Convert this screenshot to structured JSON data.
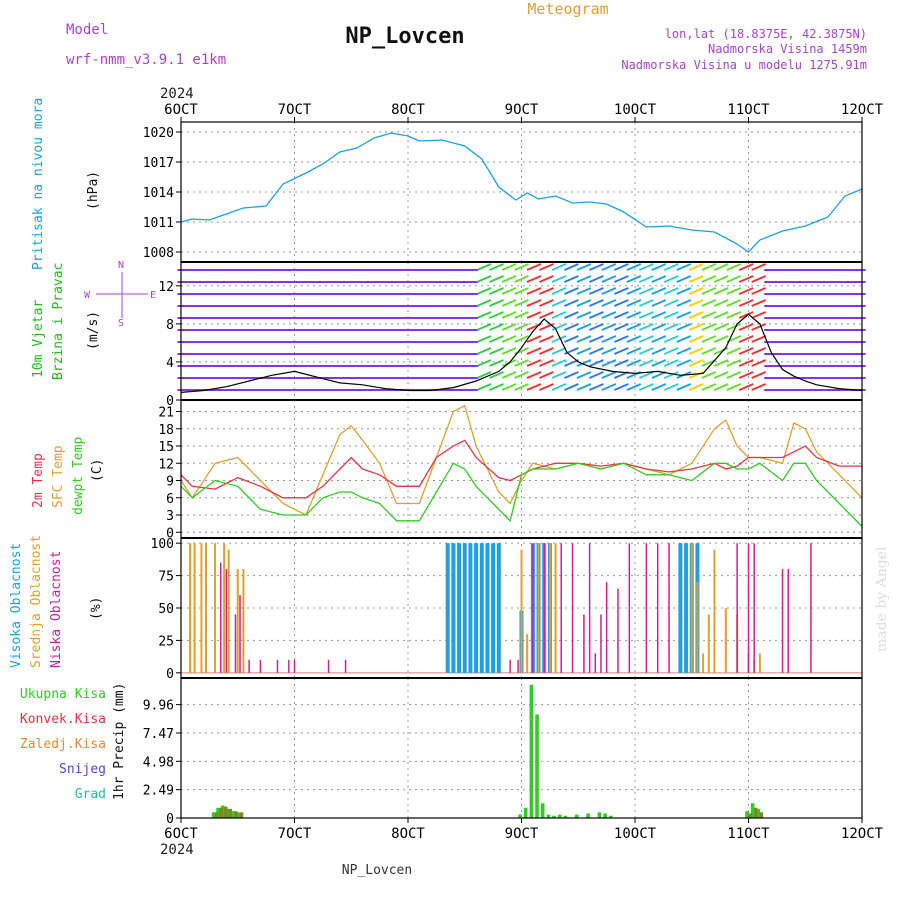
{
  "header": {
    "model_label": "Model",
    "model_name": "wrf-nmm_v3.9.1 e1km",
    "station": "NP_Lovcen",
    "product": "Meteogram",
    "lonlat": "lon,lat (18.8375E, 42.3875N)",
    "elevation": "Nadmorska Visina 1459m",
    "model_elevation": "Nadmorska Visina u modelu 1275.91m",
    "footer_station": "NP_Lovcen",
    "credit": "made by Angel"
  },
  "time_axis": {
    "year": "2024",
    "ticks": [
      "6OCT",
      "7OCT",
      "8OCT",
      "9OCT",
      "10OCT",
      "11OCT",
      "12OCT"
    ]
  },
  "colors": {
    "pressure": "#1ea0e6",
    "wind_title": "#22bb22",
    "speed_title": "#22bb22",
    "wind_legend": "#aa44cc",
    "t2m": "#ee3344",
    "tsfc": "#e0a030",
    "dewpt": "#33cc22",
    "high_cloud": "#1ea0e6",
    "mid_cloud": "#e0a030",
    "low_cloud": "#cc2299",
    "total_precip": "#33cc22",
    "conv_precip": "#ee3344",
    "frz_precip": "#ee8833",
    "snow": "#5544dd",
    "grad": "#22bbaa",
    "model": "#aa44cc",
    "meteogram": "#e0a030",
    "location": "#aa44cc"
  },
  "chart_data": [
    {
      "type": "line",
      "panel": "pressure",
      "ylabel_title": "Pritisak na nivou mora",
      "ylabel_unit": "(hPa)",
      "yticks": [
        1008,
        1011,
        1014,
        1017,
        1020
      ],
      "ylim": [
        1007,
        1021
      ],
      "x": [
        0,
        0.1,
        0.25,
        0.4,
        0.55,
        0.75,
        0.9,
        1.1,
        1.25,
        1.4,
        1.55,
        1.7,
        1.85,
        2.0,
        2.1,
        2.3,
        2.5,
        2.65,
        2.8,
        2.95,
        3.05,
        3.15,
        3.3,
        3.45,
        3.6,
        3.75,
        3.9,
        4.1,
        4.3,
        4.5,
        4.7,
        4.9,
        5.0,
        5.1,
        5.3,
        5.5,
        5.7,
        5.85,
        6.0
      ],
      "series": [
        {
          "name": "",
          "values": [
            1011,
            1011.3,
            1011.2,
            1011.8,
            1012.4,
            1012.6,
            1014.8,
            1015.9,
            1016.8,
            1018.0,
            1018.4,
            1019.4,
            1019.9,
            1019.6,
            1019.1,
            1019.2,
            1018.6,
            1017.3,
            1014.5,
            1013.2,
            1013.9,
            1013.3,
            1013.6,
            1012.9,
            1013.0,
            1012.8,
            1012.0,
            1010.5,
            1010.6,
            1010.2,
            1010.0,
            1008.8,
            1008.0,
            1009.2,
            1010.1,
            1010.6,
            1011.5,
            1013.6,
            1014.3
          ]
        }
      ]
    },
    {
      "type": "line",
      "panel": "wind",
      "ylabel_title_line1": "10m Vjetar",
      "ylabel_title_line2": "Brzina i Pravac",
      "ylabel_unit": "(m/s)",
      "direction_legend": [
        "N",
        "W",
        "E",
        "S"
      ],
      "yticks": [
        0,
        4,
        8,
        12
      ],
      "ylim": [
        0,
        14.5
      ],
      "x": [
        0,
        0.2,
        0.4,
        0.6,
        0.8,
        1.0,
        1.2,
        1.4,
        1.6,
        1.8,
        2.0,
        2.2,
        2.4,
        2.6,
        2.8,
        2.9,
        3.0,
        3.1,
        3.2,
        3.3,
        3.4,
        3.5,
        3.6,
        3.8,
        4.0,
        4.2,
        4.4,
        4.6,
        4.8,
        4.9,
        5.0,
        5.1,
        5.2,
        5.3,
        5.4,
        5.5,
        5.6,
        5.8,
        6.0
      ],
      "series": [
        {
          "name": "",
          "values": [
            0.8,
            1.0,
            1.4,
            2.0,
            2.6,
            3.0,
            2.4,
            1.8,
            1.6,
            1.2,
            1.0,
            1.0,
            1.3,
            2.0,
            3.0,
            4.0,
            5.5,
            7.2,
            8.5,
            7.5,
            5.0,
            4.0,
            3.5,
            3.0,
            2.8,
            3.0,
            2.6,
            2.8,
            5.5,
            8.0,
            9.0,
            8.0,
            5.0,
            3.2,
            2.5,
            2.0,
            1.6,
            1.2,
            1.0
          ]
        }
      ]
    },
    {
      "type": "line",
      "panel": "temperature",
      "ylabel_t2m": "2m Temp",
      "ylabel_tsfc": "SFC Temp",
      "ylabel_dewpt": "dewpt Temp",
      "ylabel_unit": "(C)",
      "yticks": [
        0,
        3,
        6,
        9,
        12,
        15,
        18,
        21
      ],
      "ylim": [
        -1,
        23
      ],
      "x": [
        0,
        0.1,
        0.3,
        0.5,
        0.7,
        0.9,
        1.1,
        1.25,
        1.4,
        1.5,
        1.6,
        1.75,
        1.9,
        2.1,
        2.25,
        2.4,
        2.5,
        2.6,
        2.8,
        2.9,
        3.0,
        3.1,
        3.3,
        3.5,
        3.7,
        3.9,
        4.1,
        4.3,
        4.5,
        4.7,
        4.8,
        4.9,
        5.0,
        5.1,
        5.3,
        5.4,
        5.5,
        5.6,
        5.8,
        6.0
      ],
      "series": [
        {
          "name": "2m Temp",
          "values": [
            10,
            8,
            7.5,
            9.5,
            8,
            6,
            6,
            8,
            11,
            13,
            11,
            10,
            8,
            8,
            13,
            15,
            16,
            13,
            9.5,
            9,
            10,
            11,
            12,
            12,
            11.5,
            12,
            11,
            10.5,
            11,
            12,
            11,
            11.5,
            13,
            13,
            13,
            14,
            15,
            13,
            11.5,
            11.5
          ]
        },
        {
          "name": "SFC Temp",
          "values": [
            9,
            6,
            12,
            13,
            9,
            5,
            3,
            10,
            17,
            18.5,
            16,
            12,
            5,
            5,
            13,
            21,
            22,
            15,
            7,
            5,
            9,
            12,
            11,
            12,
            11,
            12,
            11,
            10,
            12,
            18,
            19.5,
            15,
            13,
            13,
            12,
            19,
            18,
            14,
            10,
            6
          ]
        },
        {
          "name": "dewpt Temp",
          "values": [
            8,
            6,
            9,
            8,
            4,
            3,
            3,
            6,
            7,
            7,
            6,
            5,
            2,
            2,
            7,
            12,
            11,
            8,
            4,
            2,
            10,
            11,
            11,
            12,
            11,
            12,
            10,
            10,
            9,
            12,
            12,
            11,
            11,
            12,
            9,
            12,
            12,
            9,
            5,
            1
          ]
        }
      ]
    },
    {
      "type": "bar",
      "panel": "cloud",
      "ylabel_high": "Visoka Oblacnost",
      "ylabel_mid": "Srednja Oblacnost",
      "ylabel_low": "Niska Oblacnost",
      "ylabel_unit": "(%)",
      "yticks": [
        0,
        25,
        50,
        75,
        100
      ],
      "ylim": [
        0,
        100
      ],
      "series": [
        {
          "name": "Visoka Oblacnost",
          "x": [
            2.35,
            2.4,
            2.45,
            2.5,
            2.55,
            2.6,
            2.65,
            2.7,
            2.75,
            2.8,
            3.0,
            3.1,
            3.15,
            3.2,
            3.25,
            4.4,
            4.45,
            4.5,
            4.55
          ],
          "values": [
            100,
            100,
            100,
            100,
            100,
            100,
            100,
            100,
            100,
            100,
            48,
            100,
            100,
            100,
            100,
            100,
            100,
            100,
            100
          ]
        },
        {
          "name": "Srednja Oblacnost",
          "x": [
            0.08,
            0.12,
            0.18,
            0.22,
            0.3,
            0.38,
            0.42,
            0.5,
            0.55,
            3.0,
            3.05,
            3.15,
            3.2,
            3.25,
            3.3,
            4.5,
            4.55,
            4.6,
            4.65,
            4.7,
            4.8,
            4.9,
            5.0,
            5.05,
            5.1
          ],
          "values": [
            100,
            100,
            100,
            100,
            100,
            100,
            95,
            80,
            80,
            95,
            30,
            100,
            100,
            100,
            100,
            100,
            70,
            15,
            45,
            95,
            50,
            45,
            15,
            10,
            15
          ]
        },
        {
          "name": "Niska Oblacnost",
          "x": [
            0.35,
            0.4,
            0.48,
            0.52,
            0.6,
            0.7,
            0.85,
            0.95,
            1.0,
            1.3,
            1.45,
            2.9,
            2.97,
            3.1,
            3.2,
            3.35,
            3.45,
            3.55,
            3.6,
            3.65,
            3.7,
            3.75,
            3.85,
            3.95,
            4.1,
            4.2,
            4.3,
            4.9,
            5.0,
            5.05,
            5.3,
            5.35,
            5.55
          ],
          "values": [
            85,
            80,
            45,
            60,
            10,
            10,
            10,
            10,
            10,
            10,
            10,
            10,
            10,
            100,
            100,
            100,
            100,
            45,
            100,
            15,
            45,
            70,
            65,
            100,
            100,
            100,
            100,
            100,
            100,
            100,
            80,
            80,
            100
          ]
        }
      ]
    },
    {
      "type": "bar",
      "panel": "precipitation",
      "legend": [
        "Ukupna Kisa",
        "Konvek.Kisa",
        "Zaledj.Kisa",
        "Snijeg",
        "Grad"
      ],
      "ylabel_unit": "1hr Precip (mm)",
      "yticks": [
        0,
        2.49,
        4.98,
        7.47,
        9.96
      ],
      "ylim": [
        0,
        12
      ],
      "series": [
        {
          "name": "Ukupna Kisa",
          "x": [
            0.3,
            0.34,
            0.38,
            0.42,
            0.47,
            0.52,
            3.0,
            3.05,
            3.1,
            3.15,
            3.2,
            3.25,
            3.3,
            3.35,
            3.4,
            3.5,
            3.6,
            3.7,
            3.75,
            3.8,
            5.0,
            5.05,
            5.1
          ],
          "values": [
            0.5,
            0.9,
            1.1,
            0.8,
            0.6,
            0.5,
            0.3,
            0.9,
            11.7,
            9.1,
            1.3,
            0.3,
            0.2,
            0.3,
            0.2,
            0.3,
            0.4,
            0.5,
            0.4,
            0.2,
            0.6,
            1.3,
            0.8
          ]
        },
        {
          "name": "Konvek.Kisa",
          "x": [
            0.3,
            0.34,
            0.38,
            0.42,
            0.47,
            0.52,
            5.0,
            5.05,
            5.1
          ],
          "values": [
            0.5,
            0.9,
            1.0,
            0.8,
            0.6,
            0.5,
            0.4,
            0.9,
            0.5
          ]
        }
      ]
    }
  ]
}
